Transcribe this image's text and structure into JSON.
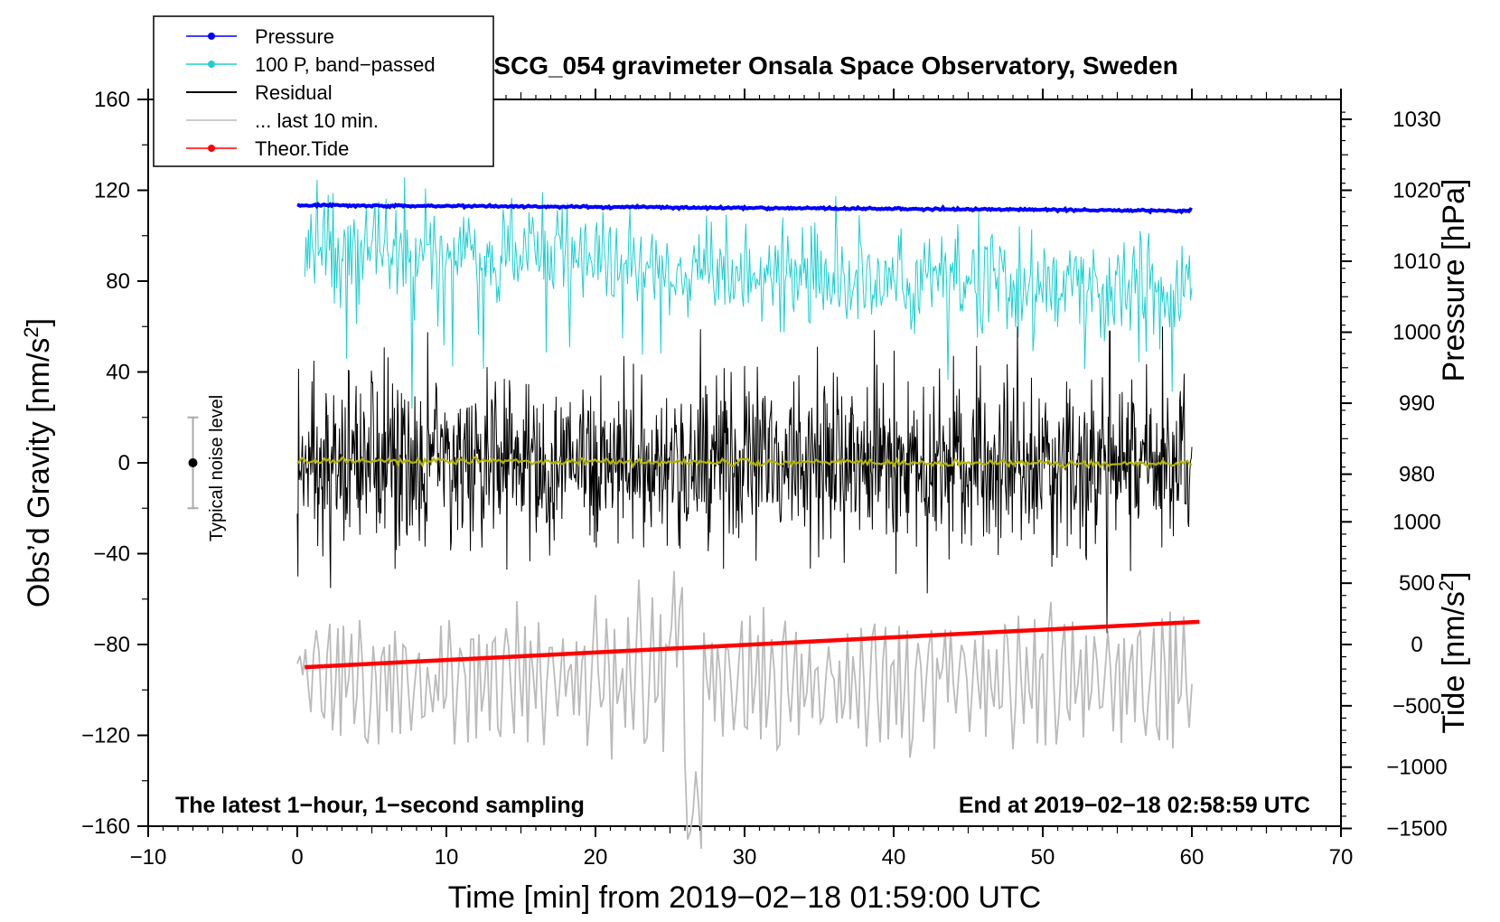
{
  "chart_data": {
    "type": "line",
    "title": "SCG_054 gravimeter Onsala Space Observatory, Sweden",
    "xlabel": "Time [min] from 2019−02−18 01:59:00 UTC",
    "ylabel_left": "Obs’d Gravity [nm/s",
    "ylabel_left_sup": "2",
    "ylabel_left_end": "]",
    "ylabel_right_pressure": "Pressure [hPa]",
    "ylabel_right_tide": "Tide [nm/s",
    "ylabel_right_tide_sup": "2",
    "ylabel_right_tide_end": "]",
    "xlim": [
      -10,
      70
    ],
    "ylim_left": [
      -160,
      160
    ],
    "x_ticks": [
      -10,
      0,
      10,
      20,
      30,
      40,
      50,
      60,
      70
    ],
    "x_tick_labels": [
      "−10",
      "0",
      "10",
      "20",
      "30",
      "40",
      "50",
      "60",
      "70"
    ],
    "y_left_ticks": [
      160,
      120,
      80,
      40,
      0,
      -40,
      -80,
      -120,
      -160
    ],
    "y_left_tick_labels": [
      "160",
      "120",
      "80",
      "40",
      "0",
      "−40",
      "−80",
      "−120",
      "−160"
    ],
    "pressure_ticks": [
      1030,
      1020,
      1010,
      1000,
      990,
      980
    ],
    "pressure_tick_labels": [
      "1030",
      "1020",
      "1010",
      "1000",
      "990",
      "980"
    ],
    "tide_ticks": [
      1000,
      500,
      0,
      -500,
      -1000,
      -1500
    ],
    "tide_tick_labels": [
      "1000",
      "500",
      "0",
      "−500",
      "−1000",
      "−1500"
    ],
    "annotation_left": "The latest 1−hour, 1−second sampling",
    "annotation_right": "End at 2019−02−18 02:58:59 UTC",
    "noise_label": "Typical noise level",
    "noise_bar": {
      "x": -7,
      "center": 0,
      "half_range": 20
    },
    "legend": [
      {
        "label": "Pressure",
        "color": "#0000ff",
        "marker": true
      },
      {
        "label": "100 P, band−passed",
        "color": "#1ecfcf",
        "marker": true
      },
      {
        "label": "Residual",
        "color": "#000000",
        "marker": false
      },
      {
        "label": "... last 10 min.",
        "color": "#bbbbbb",
        "marker": false
      },
      {
        "label": "Theor.Tide",
        "color": "#ff0000",
        "marker": true
      }
    ],
    "series": [
      {
        "name": "Pressure",
        "color": "#0000ff",
        "axis": "left",
        "x_range": [
          0,
          60
        ],
        "y_start": 113.5,
        "y_end": 111,
        "noise": 0.6
      },
      {
        "name": "100 P, band−passed",
        "color": "#1ecfcf",
        "axis": "left",
        "x_range": [
          0.5,
          60
        ],
        "y_start": 96,
        "y_end": 74,
        "amplitude": 12
      },
      {
        "name": "Residual",
        "color": "#000000",
        "axis": "left",
        "x_range": [
          0,
          60
        ],
        "center": 0,
        "amplitude": 22
      },
      {
        "name": "Residual smoothed",
        "color": "#b5b500",
        "axis": "left",
        "x_range": [
          0,
          60
        ],
        "center": 1,
        "amplitude": 1.2
      },
      {
        "name": "... last 10 min.",
        "color": "#bbbbbb",
        "axis": "left",
        "x_range": [
          0,
          60
        ],
        "center": -95,
        "amplitude": 22
      },
      {
        "name": "Theor.Tide",
        "color": "#ff0000",
        "axis": "left",
        "x": [
          0.5,
          60.5
        ],
        "y": [
          -90,
          -70
        ]
      }
    ],
    "colors": {
      "axis": "#000000",
      "background": "#ffffff"
    }
  }
}
